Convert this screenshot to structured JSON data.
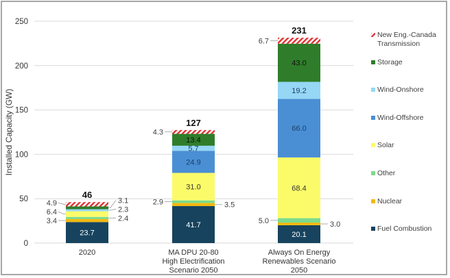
{
  "chart_data": {
    "type": "bar",
    "stacked": true,
    "title": "",
    "xlabel": "",
    "ylabel": "Installed Capacity (GW)",
    "ylim": [
      0,
      250
    ],
    "yticks": [
      0,
      50,
      100,
      150,
      200,
      250
    ],
    "grid": true,
    "legend_position": "right",
    "categories": [
      [
        "2020"
      ],
      [
        "MA DPU 20-80",
        "High Electrification",
        "Scenario 2050"
      ],
      [
        "Always On Energy",
        "Renewables Scenario",
        "2050"
      ]
    ],
    "totals": [
      "46",
      "127",
      "231"
    ],
    "series": [
      {
        "name": "Fuel Combustion",
        "color": "#17435e",
        "label_color": "#ffffff",
        "values": [
          23.7,
          41.7,
          20.1
        ]
      },
      {
        "name": "Nuclear",
        "color": "#f2b90f",
        "label_color": "#333333",
        "values": [
          3.4,
          3.5,
          3.0
        ]
      },
      {
        "name": "Other",
        "color": "#7cdb8c",
        "label_color": "#333333",
        "values": [
          2.4,
          2.9,
          5.0
        ]
      },
      {
        "name": "Solar",
        "color": "#fbfb6a",
        "label_color": "#333333",
        "values": [
          6.4,
          31.0,
          68.4
        ]
      },
      {
        "name": "Wind-Offshore",
        "color": "#4a8fd4",
        "label_color": "#1f3f66",
        "values": [
          0,
          24.9,
          66.0
        ]
      },
      {
        "name": "Wind-Onshore",
        "color": "#95d7f5",
        "label_color": "#1f3f66",
        "values": [
          2.3,
          5.7,
          19.2
        ]
      },
      {
        "name": "Storage",
        "color": "#2f7d2a",
        "label_color": "#111111",
        "values": [
          3.1,
          13.4,
          43.0
        ]
      },
      {
        "name": "New Eng.-Canada Transmission",
        "color": "#e03030",
        "pattern": "hatch",
        "values": [
          4.9,
          4.3,
          6.7
        ]
      }
    ],
    "segment_labels": [
      [
        {
          "series": "Fuel Combustion",
          "text": "23.7",
          "pos": "inside"
        },
        {
          "series": "Nuclear",
          "text": "3.4",
          "pos": "left"
        },
        {
          "series": "Other",
          "text": "2.4",
          "pos": "right"
        },
        {
          "series": "Solar",
          "text": "6.4",
          "pos": "left"
        },
        {
          "series": "Wind-Onshore",
          "text": "2.3",
          "pos": "right"
        },
        {
          "series": "Storage",
          "text": "3.1",
          "pos": "right"
        },
        {
          "series": "New Eng.-Canada Transmission",
          "text": "4.9",
          "pos": "left"
        }
      ],
      [
        {
          "series": "Fuel Combustion",
          "text": "41.7",
          "pos": "inside"
        },
        {
          "series": "Nuclear",
          "text": "3.5",
          "pos": "right"
        },
        {
          "series": "Other",
          "text": "2.9",
          "pos": "left"
        },
        {
          "series": "Solar",
          "text": "31.0",
          "pos": "inside"
        },
        {
          "series": "Wind-Offshore",
          "text": "24.9",
          "pos": "inside"
        },
        {
          "series": "Wind-Onshore",
          "text": "5.7",
          "pos": "inside"
        },
        {
          "series": "Storage",
          "text": "13.4",
          "pos": "inside"
        },
        {
          "series": "New Eng.-Canada Transmission",
          "text": "4.3",
          "pos": "left"
        }
      ],
      [
        {
          "series": "Fuel Combustion",
          "text": "20.1",
          "pos": "inside"
        },
        {
          "series": "Nuclear",
          "text": "3.0",
          "pos": "right"
        },
        {
          "series": "Other",
          "text": "5.0",
          "pos": "left"
        },
        {
          "series": "Solar",
          "text": "68.4",
          "pos": "inside"
        },
        {
          "series": "Wind-Offshore",
          "text": "66.0",
          "pos": "inside"
        },
        {
          "series": "Wind-Onshore",
          "text": "19.2",
          "pos": "inside"
        },
        {
          "series": "Storage",
          "text": "43.0",
          "pos": "inside"
        },
        {
          "series": "New Eng.-Canada Transmission",
          "text": "6.7",
          "pos": "left"
        }
      ]
    ],
    "legend": [
      {
        "lines": [
          "New Eng.-Canada",
          "Transmission"
        ],
        "color": "#e03030",
        "pattern": "hatch"
      },
      {
        "lines": [
          "Storage"
        ],
        "color": "#2f7d2a"
      },
      {
        "lines": [
          "Wind-Onshore"
        ],
        "color": "#95d7f5"
      },
      {
        "lines": [
          "Wind-Offshore"
        ],
        "color": "#4a8fd4"
      },
      {
        "lines": [
          "Solar"
        ],
        "color": "#fbfb6a"
      },
      {
        "lines": [
          "Other"
        ],
        "color": "#7cdb8c"
      },
      {
        "lines": [
          "Nuclear"
        ],
        "color": "#f2b90f"
      },
      {
        "lines": [
          "Fuel Combustion"
        ],
        "color": "#17435e"
      }
    ]
  }
}
